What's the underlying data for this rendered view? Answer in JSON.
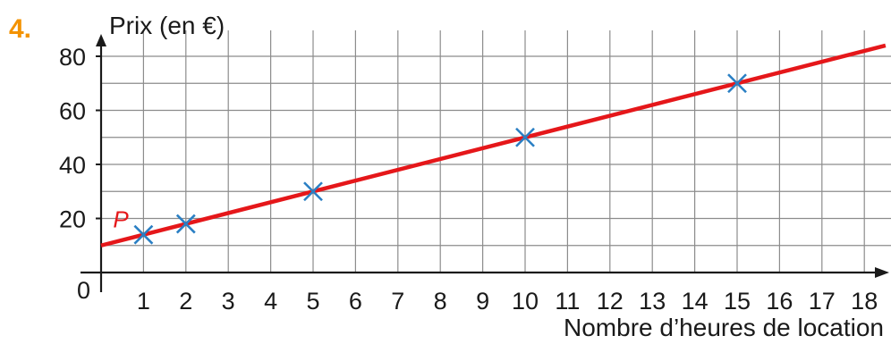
{
  "exercise_number": "4.",
  "colors": {
    "exercise_number": "#f39200",
    "grid": "#8c8c8c",
    "axis": "#1a1a1a",
    "line": "#e5171a",
    "markers": "#2a7fc4",
    "point_label": "#e5171a"
  },
  "chart_data": {
    "type": "scatter",
    "title": "",
    "xlabel": "Nombre d’heures de location",
    "ylabel": "Prix (en €)",
    "origin_label": "0",
    "xlim": [
      0,
      18
    ],
    "ylim": [
      0,
      80
    ],
    "x_ticks": [
      "1",
      "2",
      "3",
      "4",
      "5",
      "6",
      "7",
      "8",
      "9",
      "10",
      "11",
      "12",
      "13",
      "14",
      "15",
      "16",
      "17",
      "18"
    ],
    "y_ticks": [
      "20",
      "40",
      "60",
      "80"
    ],
    "grid": true,
    "series": [
      {
        "kind": "markers",
        "marker": "x",
        "points": [
          {
            "x": 1,
            "y": 14
          },
          {
            "x": 2,
            "y": 18
          },
          {
            "x": 5,
            "y": 30
          },
          {
            "x": 10,
            "y": 50
          },
          {
            "x": 15,
            "y": 70
          }
        ]
      },
      {
        "kind": "line",
        "points": [
          {
            "x": 0,
            "y": 10
          },
          {
            "x": 18.5,
            "y": 84
          }
        ]
      }
    ],
    "annotations": [
      {
        "text": "P",
        "x": 1,
        "y": 14
      }
    ]
  }
}
